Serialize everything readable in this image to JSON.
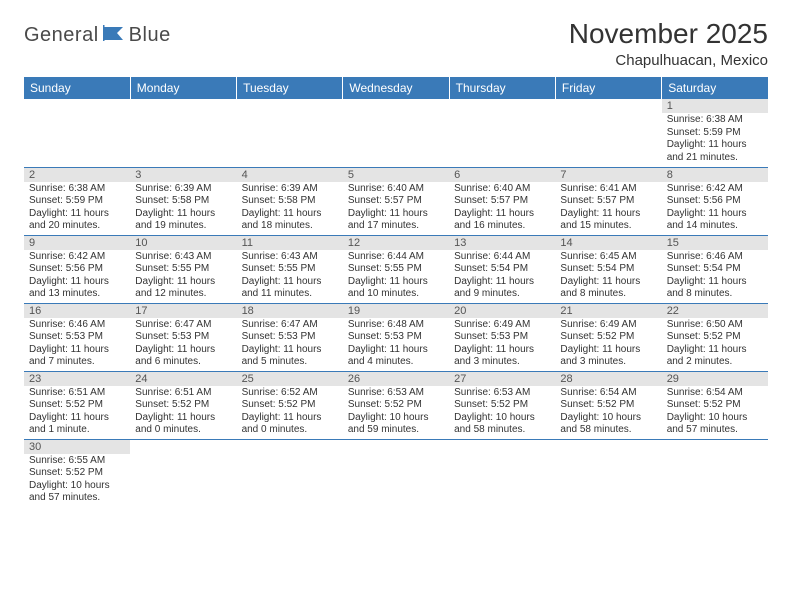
{
  "logo": {
    "part1": "General",
    "part2": "Blue"
  },
  "title": "November 2025",
  "location": "Chapulhuacan, Mexico",
  "colors": {
    "header_bg": "#3a7ab8",
    "header_text": "#ffffff",
    "daynum_bg": "#e4e4e4",
    "border": "#3a7ab8",
    "text": "#333333"
  },
  "weekdays": [
    "Sunday",
    "Monday",
    "Tuesday",
    "Wednesday",
    "Thursday",
    "Friday",
    "Saturday"
  ],
  "weeks": [
    [
      null,
      null,
      null,
      null,
      null,
      null,
      {
        "n": "1",
        "sr": "6:38 AM",
        "ss": "5:59 PM",
        "dl": "11 hours and 21 minutes."
      }
    ],
    [
      {
        "n": "2",
        "sr": "6:38 AM",
        "ss": "5:59 PM",
        "dl": "11 hours and 20 minutes."
      },
      {
        "n": "3",
        "sr": "6:39 AM",
        "ss": "5:58 PM",
        "dl": "11 hours and 19 minutes."
      },
      {
        "n": "4",
        "sr": "6:39 AM",
        "ss": "5:58 PM",
        "dl": "11 hours and 18 minutes."
      },
      {
        "n": "5",
        "sr": "6:40 AM",
        "ss": "5:57 PM",
        "dl": "11 hours and 17 minutes."
      },
      {
        "n": "6",
        "sr": "6:40 AM",
        "ss": "5:57 PM",
        "dl": "11 hours and 16 minutes."
      },
      {
        "n": "7",
        "sr": "6:41 AM",
        "ss": "5:57 PM",
        "dl": "11 hours and 15 minutes."
      },
      {
        "n": "8",
        "sr": "6:42 AM",
        "ss": "5:56 PM",
        "dl": "11 hours and 14 minutes."
      }
    ],
    [
      {
        "n": "9",
        "sr": "6:42 AM",
        "ss": "5:56 PM",
        "dl": "11 hours and 13 minutes."
      },
      {
        "n": "10",
        "sr": "6:43 AM",
        "ss": "5:55 PM",
        "dl": "11 hours and 12 minutes."
      },
      {
        "n": "11",
        "sr": "6:43 AM",
        "ss": "5:55 PM",
        "dl": "11 hours and 11 minutes."
      },
      {
        "n": "12",
        "sr": "6:44 AM",
        "ss": "5:55 PM",
        "dl": "11 hours and 10 minutes."
      },
      {
        "n": "13",
        "sr": "6:44 AM",
        "ss": "5:54 PM",
        "dl": "11 hours and 9 minutes."
      },
      {
        "n": "14",
        "sr": "6:45 AM",
        "ss": "5:54 PM",
        "dl": "11 hours and 8 minutes."
      },
      {
        "n": "15",
        "sr": "6:46 AM",
        "ss": "5:54 PM",
        "dl": "11 hours and 8 minutes."
      }
    ],
    [
      {
        "n": "16",
        "sr": "6:46 AM",
        "ss": "5:53 PM",
        "dl": "11 hours and 7 minutes."
      },
      {
        "n": "17",
        "sr": "6:47 AM",
        "ss": "5:53 PM",
        "dl": "11 hours and 6 minutes."
      },
      {
        "n": "18",
        "sr": "6:47 AM",
        "ss": "5:53 PM",
        "dl": "11 hours and 5 minutes."
      },
      {
        "n": "19",
        "sr": "6:48 AM",
        "ss": "5:53 PM",
        "dl": "11 hours and 4 minutes."
      },
      {
        "n": "20",
        "sr": "6:49 AM",
        "ss": "5:53 PM",
        "dl": "11 hours and 3 minutes."
      },
      {
        "n": "21",
        "sr": "6:49 AM",
        "ss": "5:52 PM",
        "dl": "11 hours and 3 minutes."
      },
      {
        "n": "22",
        "sr": "6:50 AM",
        "ss": "5:52 PM",
        "dl": "11 hours and 2 minutes."
      }
    ],
    [
      {
        "n": "23",
        "sr": "6:51 AM",
        "ss": "5:52 PM",
        "dl": "11 hours and 1 minute."
      },
      {
        "n": "24",
        "sr": "6:51 AM",
        "ss": "5:52 PM",
        "dl": "11 hours and 0 minutes."
      },
      {
        "n": "25",
        "sr": "6:52 AM",
        "ss": "5:52 PM",
        "dl": "11 hours and 0 minutes."
      },
      {
        "n": "26",
        "sr": "6:53 AM",
        "ss": "5:52 PM",
        "dl": "10 hours and 59 minutes."
      },
      {
        "n": "27",
        "sr": "6:53 AM",
        "ss": "5:52 PM",
        "dl": "10 hours and 58 minutes."
      },
      {
        "n": "28",
        "sr": "6:54 AM",
        "ss": "5:52 PM",
        "dl": "10 hours and 58 minutes."
      },
      {
        "n": "29",
        "sr": "6:54 AM",
        "ss": "5:52 PM",
        "dl": "10 hours and 57 minutes."
      }
    ],
    [
      {
        "n": "30",
        "sr": "6:55 AM",
        "ss": "5:52 PM",
        "dl": "10 hours and 57 minutes."
      },
      null,
      null,
      null,
      null,
      null,
      null
    ]
  ],
  "labels": {
    "sunrise": "Sunrise:",
    "sunset": "Sunset:",
    "daylight": "Daylight:"
  }
}
